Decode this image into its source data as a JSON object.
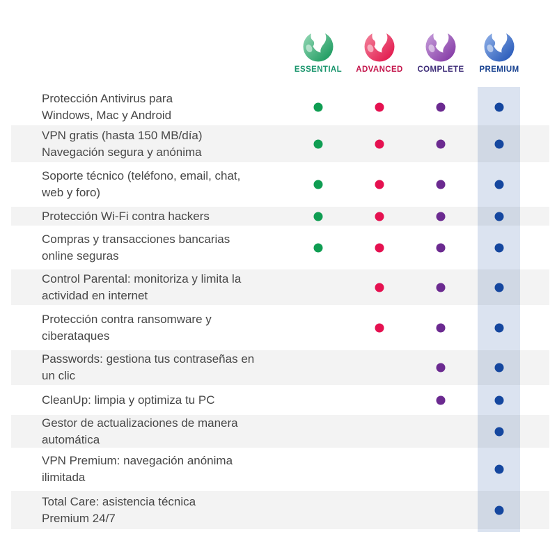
{
  "plans": [
    {
      "name": "ESSENTIAL",
      "label_color": "#17946b",
      "logo_gradient_light": "#9adbb9",
      "logo_gradient_dark": "#0e9355",
      "dot_color": "#0f9d52"
    },
    {
      "name": "ADVANCED",
      "label_color": "#c4164c",
      "logo_gradient_light": "#f4899f",
      "logo_gradient_dark": "#e00c44",
      "dot_color": "#e51150"
    },
    {
      "name": "COMPLETE",
      "label_color": "#3d2c78",
      "logo_gradient_light": "#c9a2dd",
      "logo_gradient_dark": "#7d2f9f",
      "dot_color": "#6b2a90"
    },
    {
      "name": "PREMIUM",
      "label_color": "#16408f",
      "logo_gradient_light": "#95b5ea",
      "logo_gradient_dark": "#1c50b4",
      "dot_color": "#15479f"
    }
  ],
  "premium_highlight_color": "#dbe3f0",
  "features": [
    {
      "lines": [
        "Protección Antivirus para",
        "Windows, Mac y Android"
      ],
      "included": [
        true,
        true,
        true,
        true
      ]
    },
    {
      "lines": [
        "VPN gratis (hasta 150 MB/día)",
        "Navegación segura y anónima"
      ],
      "included": [
        true,
        true,
        true,
        true
      ]
    },
    {
      "lines": [
        "Soporte técnico (teléfono, email, chat,",
        "web y foro)"
      ],
      "included": [
        true,
        true,
        true,
        true
      ]
    },
    {
      "lines": [
        "Protección Wi-Fi contra hackers"
      ],
      "included": [
        true,
        true,
        true,
        true
      ]
    },
    {
      "lines": [
        "Compras y transacciones bancarias",
        "online seguras"
      ],
      "included": [
        true,
        true,
        true,
        true
      ]
    },
    {
      "lines": [
        "Control Parental: monitoriza y limita la",
        "actividad en internet"
      ],
      "included": [
        false,
        true,
        true,
        true
      ]
    },
    {
      "lines": [
        "Protección contra ransomware y",
        "ciberataques"
      ],
      "included": [
        false,
        true,
        true,
        true
      ]
    },
    {
      "lines": [
        "Passwords: gestiona tus contraseñas en",
        "un clic"
      ],
      "included": [
        false,
        false,
        true,
        true
      ]
    },
    {
      "lines": [
        "CleanUp: limpia y optimiza tu PC"
      ],
      "included": [
        false,
        false,
        true,
        true
      ]
    },
    {
      "lines": [
        "Gestor de actualizaciones de manera",
        "automática"
      ],
      "included": [
        false,
        false,
        false,
        true
      ]
    },
    {
      "lines": [
        "VPN Premium: navegación anónima",
        "ilimitada"
      ],
      "included": [
        false,
        false,
        false,
        true
      ]
    },
    {
      "lines": [
        "Total Care: asistencia técnica",
        "Premium 24/7"
      ],
      "included": [
        false,
        false,
        false,
        true
      ]
    }
  ]
}
